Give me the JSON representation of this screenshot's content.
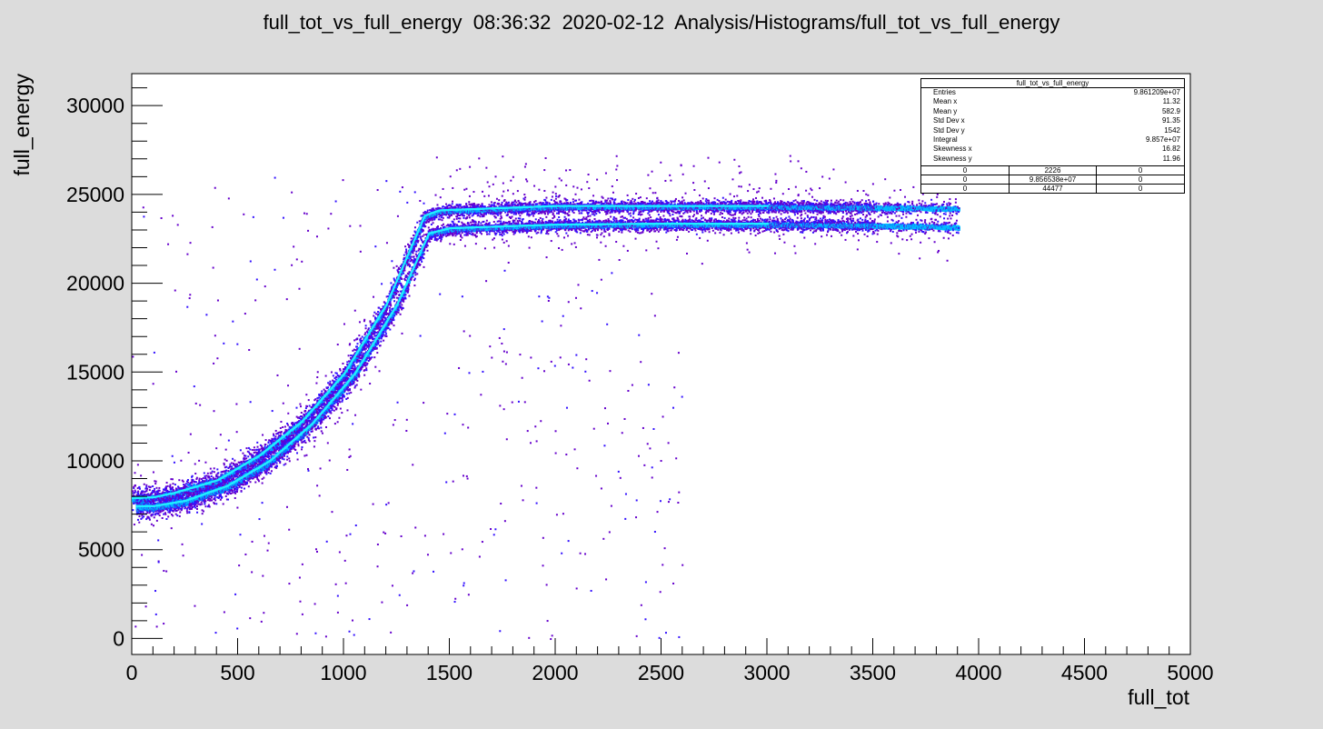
{
  "title": "full_tot_vs_full_energy  08:36:32  2020-02-12  Analysis/Histograms/full_tot_vs_full_energy",
  "colors": {
    "background": "#dcdcdc",
    "frame": "#ffffff",
    "palette": [
      "#6600cc",
      "#3311ff",
      "#0044ff",
      "#0088ff",
      "#00bbff",
      "#22eeff"
    ]
  },
  "chart_data": {
    "type": "heatmap",
    "title": "full_tot_vs_full_energy  08:36:32  2020-02-12  Analysis/Histograms/full_tot_vs_full_energy",
    "xlabel": "full_tot",
    "ylabel": "full_energy",
    "xlim": [
      0,
      5000
    ],
    "ylim": [
      -900,
      31800
    ],
    "x_ticks": [
      0,
      500,
      1000,
      1500,
      2000,
      2500,
      3000,
      3500,
      4000,
      4500,
      5000
    ],
    "x_tick_labels": [
      "0",
      "500",
      "1000",
      "1500",
      "2000",
      "2500",
      "3000",
      "3500",
      "4000",
      "4500",
      "5000"
    ],
    "y_ticks": [
      0,
      5000,
      10000,
      15000,
      20000,
      25000,
      30000
    ],
    "y_tick_labels": [
      "0",
      "5000",
      "10000",
      "15000",
      "20000",
      "25000",
      "30000"
    ],
    "grid": false,
    "bands": [
      {
        "name": "",
        "points": [
          [
            0,
            7900
          ],
          [
            100,
            7950
          ],
          [
            200,
            8200
          ],
          [
            400,
            8900
          ],
          [
            600,
            10300
          ],
          [
            800,
            12200
          ],
          [
            1000,
            14900
          ],
          [
            1200,
            18800
          ],
          [
            1380,
            23800
          ],
          [
            1450,
            24100
          ],
          [
            2000,
            24350
          ],
          [
            3000,
            24350
          ],
          [
            3500,
            24300
          ],
          [
            3900,
            24250
          ]
        ]
      },
      {
        "name": "",
        "points": [
          [
            20,
            7450
          ],
          [
            100,
            7450
          ],
          [
            250,
            7750
          ],
          [
            450,
            8600
          ],
          [
            650,
            10000
          ],
          [
            850,
            12100
          ],
          [
            1050,
            14900
          ],
          [
            1250,
            18800
          ],
          [
            1400,
            22800
          ],
          [
            1500,
            23100
          ],
          [
            2000,
            23300
          ],
          [
            2500,
            23350
          ],
          [
            3000,
            23350
          ],
          [
            3500,
            23300
          ],
          [
            3900,
            23200
          ]
        ]
      }
    ],
    "stats_box": {
      "title": "full_tot_vs_full_energy",
      "entries": [
        {
          "label": "Entries",
          "value": "9.861209e+07"
        },
        {
          "label": "Mean x",
          "value": "11.32"
        },
        {
          "label": "Mean y",
          "value": "582.9"
        },
        {
          "label": "Std Dev x",
          "value": "91.35"
        },
        {
          "label": "Std Dev y",
          "value": "1542"
        },
        {
          "label": "Integral",
          "value": "9.857e+07"
        },
        {
          "label": "Skewness x",
          "value": "16.82"
        },
        {
          "label": "Skewness y",
          "value": "11.96"
        }
      ],
      "grid": [
        [
          "0",
          "2226",
          "0"
        ],
        [
          "0",
          "9.856538e+07",
          "0"
        ],
        [
          "0",
          "44477",
          "0"
        ]
      ]
    }
  }
}
